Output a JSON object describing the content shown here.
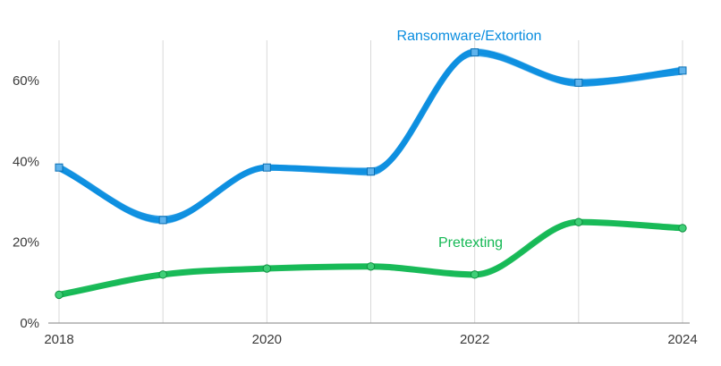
{
  "chart_data": {
    "type": "line",
    "x": [
      2018,
      2019,
      2020,
      2021,
      2022,
      2023,
      2024
    ],
    "x_tick_labels": [
      "2018",
      "2020",
      "2022",
      "2024"
    ],
    "y_tick_labels": [
      "0%",
      "20%",
      "40%",
      "60%"
    ],
    "ylim": [
      0,
      70
    ],
    "xlim": [
      2018,
      2024
    ],
    "grid": "vertical",
    "series": [
      {
        "name": "Ransomware/Extortion",
        "color": "#0a8ddf",
        "values": [
          38.5,
          25.5,
          38.5,
          37.5,
          67,
          59.5,
          62.5
        ]
      },
      {
        "name": "Pretexting",
        "color": "#14b854",
        "values": [
          7,
          12,
          13.5,
          14,
          12,
          25,
          23.5
        ]
      }
    ]
  }
}
